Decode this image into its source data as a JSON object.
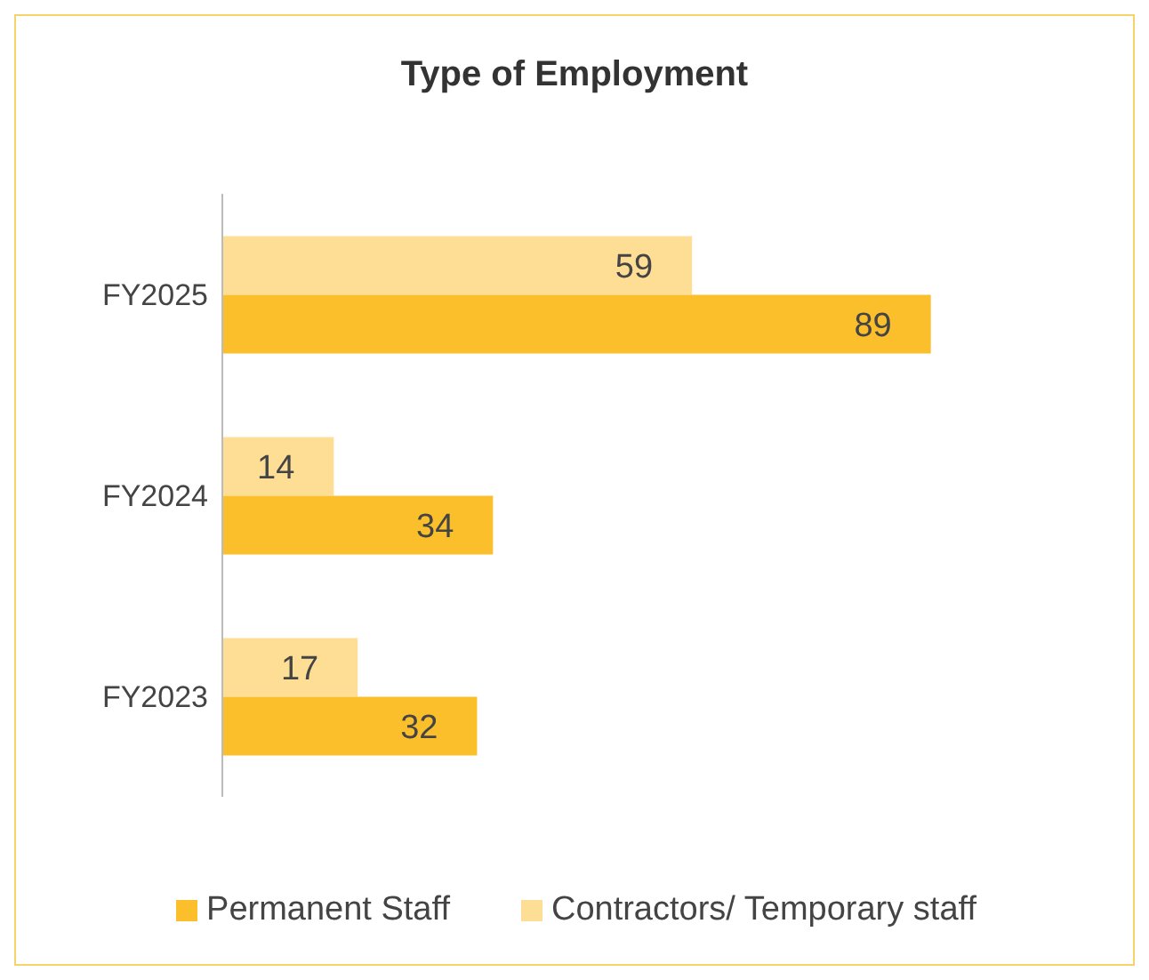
{
  "chart_data": {
    "type": "bar",
    "title": "Type of Employment",
    "orientation": "horizontal",
    "categories": [
      "FY2025",
      "FY2024",
      "FY2023"
    ],
    "series": [
      {
        "name": "Permanent Staff",
        "color": "#fbbf2b",
        "values": [
          89,
          34,
          32
        ]
      },
      {
        "name": "Contractors/ Temporary staff",
        "color": "#fedd95",
        "values": [
          59,
          14,
          17
        ]
      }
    ],
    "data_labels": true,
    "legend": "bottom"
  }
}
